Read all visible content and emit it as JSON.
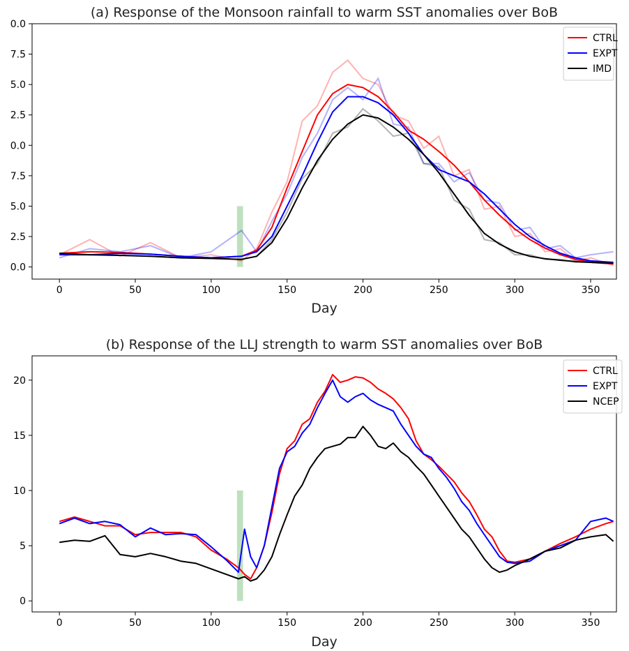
{
  "chart_data": [
    {
      "type": "line",
      "title": "(a) Response of the Monsoon rainfall to warm SST anomalies over BoB",
      "xlabel": "Day",
      "ylabel": "",
      "xlim": [
        -18,
        367
      ],
      "ylim": [
        -0.4,
        8.0
      ],
      "xticks": [
        0,
        50,
        100,
        150,
        200,
        250,
        300,
        350
      ],
      "xtick_labels": [
        "0",
        "50",
        "100",
        "150",
        "200",
        "250",
        "300",
        "350"
      ],
      "yticks": [
        0,
        1,
        2,
        3,
        4,
        5,
        6,
        7,
        8
      ],
      "ytick_labels": [
        "0.0",
        "2.5",
        "5.0",
        "7.5",
        "0.0",
        "2.5",
        "5.0",
        "7.5",
        "0.0"
      ],
      "legend_position": "top-right",
      "highlight_band": {
        "x": [
          117,
          121
        ],
        "y": [
          0,
          2.0
        ],
        "color": "#a8d5a8"
      },
      "series": [
        {
          "name": "CTRL",
          "color": "#ff0000",
          "x": [
            0,
            20,
            40,
            60,
            80,
            100,
            120,
            130,
            140,
            150,
            160,
            170,
            180,
            190,
            200,
            210,
            220,
            230,
            240,
            250,
            260,
            270,
            280,
            290,
            300,
            310,
            320,
            330,
            340,
            350,
            365
          ],
          "values": [
            0.45,
            0.5,
            0.48,
            0.42,
            0.35,
            0.3,
            0.35,
            0.55,
            1.3,
            2.6,
            3.8,
            5.0,
            5.7,
            6.0,
            5.9,
            5.6,
            5.1,
            4.5,
            4.2,
            3.8,
            3.35,
            2.8,
            2.2,
            1.7,
            1.25,
            0.9,
            0.62,
            0.4,
            0.25,
            0.15,
            0.1
          ],
          "raw": [
            0.4,
            0.9,
            0.35,
            0.8,
            0.3,
            0.4,
            0.2,
            0.6,
            1.8,
            2.8,
            4.8,
            5.3,
            6.4,
            6.8,
            6.2,
            6.0,
            5.0,
            4.8,
            3.9,
            4.3,
            3.0,
            3.2,
            1.9,
            2.0,
            1.0,
            1.1,
            0.5,
            0.6,
            0.2,
            0.3,
            0.05
          ]
        },
        {
          "name": "EXPT",
          "color": "#0000ff",
          "x": [
            0,
            20,
            40,
            60,
            80,
            100,
            120,
            130,
            140,
            150,
            160,
            170,
            180,
            190,
            200,
            210,
            220,
            230,
            240,
            250,
            260,
            270,
            280,
            290,
            300,
            310,
            320,
            330,
            340,
            350,
            365
          ],
          "values": [
            0.4,
            0.4,
            0.45,
            0.42,
            0.35,
            0.3,
            0.35,
            0.5,
            1.0,
            2.0,
            3.0,
            4.1,
            5.1,
            5.6,
            5.6,
            5.4,
            5.0,
            4.4,
            3.7,
            3.2,
            3.0,
            2.8,
            2.4,
            1.9,
            1.4,
            1.0,
            0.7,
            0.45,
            0.3,
            0.2,
            0.15
          ],
          "raw": [
            0.3,
            0.6,
            0.5,
            0.7,
            0.3,
            0.5,
            1.2,
            0.5,
            1.5,
            2.4,
            3.6,
            4.4,
            5.5,
            5.9,
            5.5,
            6.2,
            4.7,
            4.6,
            3.4,
            3.4,
            2.8,
            3.1,
            2.2,
            2.1,
            1.2,
            1.3,
            0.6,
            0.7,
            0.3,
            0.4,
            0.5
          ]
        },
        {
          "name": "IMD",
          "color": "#000000",
          "x": [
            0,
            20,
            40,
            60,
            80,
            100,
            120,
            130,
            140,
            150,
            160,
            170,
            180,
            190,
            200,
            210,
            220,
            230,
            240,
            250,
            260,
            270,
            280,
            290,
            300,
            310,
            320,
            330,
            340,
            350,
            365
          ],
          "values": [
            0.45,
            0.4,
            0.38,
            0.35,
            0.3,
            0.28,
            0.25,
            0.35,
            0.8,
            1.6,
            2.6,
            3.5,
            4.2,
            4.7,
            5.0,
            4.9,
            4.6,
            4.2,
            3.7,
            3.1,
            2.4,
            1.7,
            1.1,
            0.75,
            0.5,
            0.35,
            0.27,
            0.22,
            0.18,
            0.15,
            0.12
          ],
          "raw": [
            0.45,
            0.4,
            0.38,
            0.35,
            0.3,
            0.28,
            0.25,
            0.35,
            0.9,
            1.8,
            2.9,
            3.4,
            4.4,
            4.6,
            5.2,
            4.8,
            4.3,
            4.4,
            3.4,
            3.3,
            2.2,
            1.9,
            0.9,
            0.8,
            0.4,
            0.4,
            0.25,
            0.25,
            0.15,
            0.15,
            0.1
          ]
        }
      ]
    },
    {
      "type": "line",
      "title": "(b) Response of the LLJ strength to warm SST anomalies over BoB",
      "xlabel": "Day",
      "ylabel": "",
      "xlim": [
        -18,
        367
      ],
      "ylim": [
        -1.0,
        22.2
      ],
      "xticks": [
        0,
        50,
        100,
        150,
        200,
        250,
        300,
        350
      ],
      "xtick_labels": [
        "0",
        "50",
        "100",
        "150",
        "200",
        "250",
        "300",
        "350"
      ],
      "yticks": [
        0,
        5,
        10,
        15,
        20
      ],
      "ytick_labels": [
        "0",
        "5",
        "10",
        "15",
        "20"
      ],
      "legend_position": "top-right",
      "highlight_band": {
        "x": [
          117,
          121
        ],
        "y": [
          0,
          10
        ],
        "color": "#a8d5a8"
      },
      "series": [
        {
          "name": "CTRL",
          "color": "#ff0000",
          "x": [
            0,
            10,
            20,
            30,
            40,
            50,
            60,
            70,
            80,
            90,
            100,
            110,
            118,
            122,
            126,
            130,
            135,
            140,
            145,
            150,
            155,
            160,
            165,
            170,
            175,
            180,
            185,
            190,
            195,
            200,
            205,
            210,
            215,
            220,
            225,
            230,
            235,
            240,
            245,
            250,
            255,
            260,
            265,
            270,
            275,
            280,
            285,
            290,
            295,
            300,
            310,
            320,
            330,
            340,
            350,
            360,
            365
          ],
          "values": [
            7.2,
            7.6,
            7.2,
            6.8,
            6.8,
            6.0,
            6.2,
            6.2,
            6.2,
            5.8,
            4.6,
            3.8,
            3.0,
            2.4,
            2.0,
            3.0,
            5.0,
            8.0,
            11.5,
            13.8,
            14.5,
            16.0,
            16.5,
            18.0,
            19.0,
            20.5,
            19.8,
            20.0,
            20.3,
            20.2,
            19.8,
            19.2,
            18.8,
            18.3,
            17.5,
            16.5,
            14.5,
            13.3,
            12.8,
            12.2,
            11.5,
            10.8,
            9.8,
            9.0,
            7.8,
            6.5,
            5.8,
            4.5,
            3.6,
            3.5,
            3.8,
            4.5,
            5.2,
            5.8,
            6.5,
            7.0,
            7.2
          ]
        },
        {
          "name": "EXPT",
          "color": "#0000ff",
          "x": [
            0,
            10,
            20,
            30,
            40,
            50,
            60,
            70,
            80,
            90,
            100,
            110,
            118,
            122,
            126,
            130,
            135,
            140,
            145,
            150,
            155,
            160,
            165,
            170,
            175,
            180,
            185,
            190,
            195,
            200,
            205,
            210,
            215,
            220,
            225,
            230,
            235,
            240,
            245,
            250,
            255,
            260,
            265,
            270,
            275,
            280,
            285,
            290,
            295,
            300,
            310,
            320,
            330,
            340,
            350,
            360,
            365
          ],
          "values": [
            7.0,
            7.5,
            7.0,
            7.2,
            6.9,
            5.8,
            6.6,
            6.0,
            6.1,
            6.0,
            4.9,
            3.7,
            2.6,
            6.5,
            4.0,
            3.0,
            5.0,
            8.5,
            12.0,
            13.5,
            14.0,
            15.2,
            16.0,
            17.5,
            18.8,
            20.0,
            18.5,
            18.0,
            18.5,
            18.8,
            18.2,
            17.8,
            17.5,
            17.2,
            16.0,
            15.0,
            14.0,
            13.3,
            13.0,
            12.0,
            11.2,
            10.2,
            9.0,
            8.2,
            7.0,
            6.0,
            5.0,
            4.0,
            3.5,
            3.4,
            3.6,
            4.5,
            5.0,
            5.5,
            7.2,
            7.5,
            7.2
          ]
        },
        {
          "name": "NCEP",
          "color": "#000000",
          "x": [
            0,
            10,
            20,
            30,
            40,
            50,
            60,
            70,
            80,
            90,
            100,
            110,
            118,
            122,
            126,
            130,
            135,
            140,
            145,
            150,
            155,
            160,
            165,
            170,
            175,
            180,
            185,
            190,
            195,
            200,
            205,
            210,
            215,
            220,
            225,
            230,
            235,
            240,
            245,
            250,
            255,
            260,
            265,
            270,
            275,
            280,
            285,
            290,
            295,
            300,
            310,
            320,
            330,
            340,
            350,
            360,
            365
          ],
          "values": [
            5.3,
            5.5,
            5.4,
            5.9,
            4.2,
            4.0,
            4.3,
            4.0,
            3.6,
            3.4,
            2.9,
            2.4,
            2.0,
            2.2,
            1.8,
            2.0,
            2.8,
            4.0,
            6.0,
            7.8,
            9.5,
            10.5,
            12.0,
            13.0,
            13.8,
            14.0,
            14.2,
            14.8,
            14.8,
            15.8,
            15.0,
            14.0,
            13.8,
            14.3,
            13.5,
            13.0,
            12.2,
            11.5,
            10.5,
            9.5,
            8.5,
            7.5,
            6.5,
            5.8,
            4.8,
            3.8,
            3.0,
            2.6,
            2.8,
            3.2,
            3.8,
            4.5,
            4.8,
            5.5,
            5.8,
            6.0,
            5.4
          ]
        }
      ]
    }
  ]
}
